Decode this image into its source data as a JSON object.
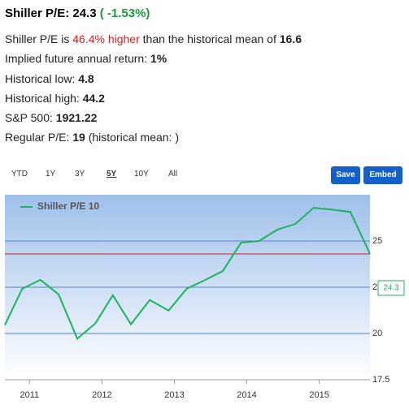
{
  "header": {
    "title": "Shiller P/E: 24.3",
    "change": "( -1.53%)"
  },
  "stats": [
    [
      "Shiller P/E is ",
      "46.4% higher",
      " than the historical mean of ",
      "16.6"
    ],
    [
      "Implied future annual return: ",
      "1%"
    ],
    [
      "Historical low: ",
      "4.8"
    ],
    [
      "Historical high: ",
      "44.2"
    ],
    [
      "S&P 500: ",
      "1921.22"
    ],
    [
      "Regular P/E: ",
      "19",
      " (historical mean: )"
    ]
  ],
  "range": {
    "options": [
      "YTD",
      "1Y",
      "3Y",
      "5Y",
      "10Y",
      "All"
    ],
    "selected": 3
  },
  "buttons": [
    "Save",
    "Embed"
  ],
  "chart_data": {
    "type": "line",
    "x": [
      2010.66,
      2010.9,
      2011.15,
      2011.4,
      2011.66,
      2011.91,
      2012.15,
      2012.4,
      2012.66,
      2012.92,
      2013.17,
      2013.43,
      2013.67,
      2013.92,
      2014.17,
      2014.42,
      2014.67,
      2014.92,
      2015.17,
      2015.43,
      2015.7
    ],
    "series": [
      {
        "name": "Shiller P/E 10",
        "color": "#1db35f",
        "values": [
          20.46,
          22.42,
          22.9,
          22.12,
          19.72,
          20.55,
          22.07,
          20.5,
          21.81,
          21.24,
          22.42,
          22.9,
          23.38,
          24.91,
          25.0,
          25.61,
          25.92,
          26.79,
          26.7,
          26.57,
          24.3
        ]
      }
    ],
    "xlim": [
      2010.66,
      2015.7
    ],
    "xticks": [
      2011,
      2012,
      2013,
      2014,
      2015
    ],
    "ylim": [
      17.5,
      27.5
    ],
    "yticks": [
      17.5,
      20,
      22.5,
      25
    ],
    "grid": true,
    "reference_line": 24.3,
    "reference_color": "#d42020",
    "flag_value": 24.3
  }
}
